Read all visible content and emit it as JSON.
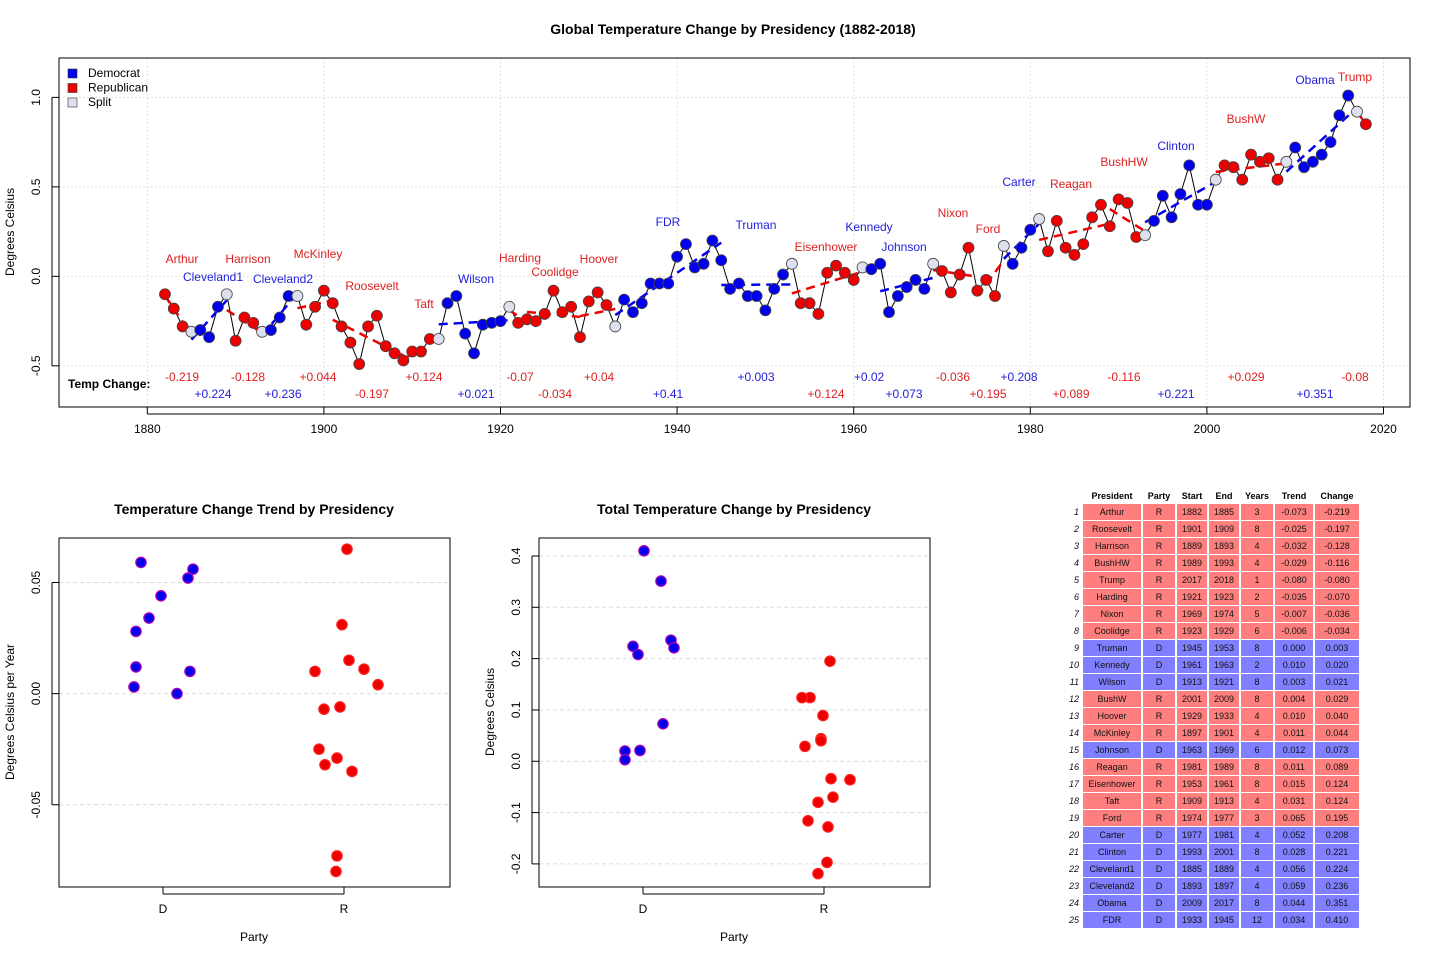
{
  "colors": {
    "democrat": "#0000ee",
    "republican": "#ee0000",
    "split": "#dde0ee",
    "text_d": "#2020dd",
    "text_r": "#dd2020",
    "row_r": "#ff7f7f",
    "row_d": "#7f7fff"
  },
  "main": {
    "title": "Global Temperature Change by Presidency (1882-2018)",
    "ylabel": "Degrees Celsius",
    "xlim": [
      1870,
      2023
    ],
    "ylim": [
      -0.73,
      1.22
    ],
    "xticks": [
      1880,
      1900,
      1920,
      1940,
      1960,
      1980,
      2000,
      2020
    ],
    "yticks": [
      -0.5,
      0.0,
      0.5,
      1.0
    ],
    "ytick_labels": [
      "-0.5",
      "0.0",
      "0.5",
      "1.0"
    ],
    "legend": [
      "Democrat",
      "Republican",
      "Split"
    ],
    "temp_change_label": "Temp Change:"
  },
  "chart_data": [
    {
      "type": "line",
      "title": "Global Temperature Change by Presidency (1882-2018)",
      "xlabel": "",
      "ylabel": "Degrees Celsius",
      "ylim": [
        -0.73,
        1.22
      ],
      "series": [
        {
          "name": "annual",
          "years": [
            1882,
            1883,
            1884,
            1885,
            1886,
            1887,
            1888,
            1889,
            1890,
            1891,
            1892,
            1893,
            1894,
            1895,
            1896,
            1897,
            1898,
            1899,
            1900,
            1901,
            1902,
            1903,
            1904,
            1905,
            1906,
            1907,
            1908,
            1909,
            1910,
            1911,
            1912,
            1913,
            1914,
            1915,
            1916,
            1917,
            1918,
            1919,
            1920,
            1921,
            1922,
            1923,
            1924,
            1925,
            1926,
            1927,
            1928,
            1929,
            1930,
            1931,
            1932,
            1933,
            1934,
            1935,
            1936,
            1937,
            1938,
            1939,
            1940,
            1941,
            1942,
            1943,
            1944,
            1945,
            1946,
            1947,
            1948,
            1949,
            1950,
            1951,
            1952,
            1953,
            1954,
            1955,
            1956,
            1957,
            1958,
            1959,
            1960,
            1961,
            1962,
            1963,
            1964,
            1965,
            1966,
            1967,
            1968,
            1969,
            1970,
            1971,
            1972,
            1973,
            1974,
            1975,
            1976,
            1977,
            1978,
            1979,
            1980,
            1981,
            1982,
            1983,
            1984,
            1985,
            1986,
            1987,
            1988,
            1989,
            1990,
            1991,
            1992,
            1993,
            1994,
            1995,
            1996,
            1997,
            1998,
            1999,
            2000,
            2001,
            2002,
            2003,
            2004,
            2005,
            2006,
            2007,
            2008,
            2009,
            2010,
            2011,
            2012,
            2013,
            2014,
            2015,
            2016,
            2017,
            2018
          ],
          "values": [
            -0.1,
            -0.18,
            -0.28,
            -0.31,
            -0.3,
            -0.34,
            -0.17,
            -0.1,
            -0.36,
            -0.23,
            -0.26,
            -0.31,
            -0.3,
            -0.23,
            -0.11,
            -0.11,
            -0.27,
            -0.17,
            -0.08,
            -0.15,
            -0.28,
            -0.37,
            -0.49,
            -0.28,
            -0.22,
            -0.39,
            -0.43,
            -0.47,
            -0.42,
            -0.42,
            -0.35,
            -0.35,
            -0.15,
            -0.11,
            -0.32,
            -0.43,
            -0.27,
            -0.26,
            -0.25,
            -0.17,
            -0.26,
            -0.24,
            -0.25,
            -0.21,
            -0.08,
            -0.2,
            -0.17,
            -0.34,
            -0.14,
            -0.09,
            -0.16,
            -0.28,
            -0.13,
            -0.2,
            -0.15,
            -0.04,
            -0.04,
            -0.04,
            0.11,
            0.18,
            0.05,
            0.07,
            0.2,
            0.09,
            -0.07,
            -0.04,
            -0.11,
            -0.11,
            -0.19,
            -0.07,
            0.01,
            0.07,
            -0.15,
            -0.15,
            -0.21,
            0.02,
            0.06,
            0.02,
            -0.02,
            0.05,
            0.04,
            0.07,
            -0.2,
            -0.11,
            -0.06,
            -0.02,
            -0.07,
            0.07,
            0.03,
            -0.09,
            0.01,
            0.16,
            -0.08,
            -0.02,
            -0.11,
            0.17,
            0.07,
            0.16,
            0.26,
            0.32,
            0.14,
            0.31,
            0.16,
            0.12,
            0.18,
            0.33,
            0.4,
            0.28,
            0.43,
            0.41,
            0.22,
            0.23,
            0.31,
            0.45,
            0.33,
            0.46,
            0.62,
            0.4,
            0.4,
            0.54,
            0.62,
            0.61,
            0.54,
            0.68,
            0.64,
            0.66,
            0.54,
            0.64,
            0.72,
            0.61,
            0.64,
            0.68,
            0.75,
            0.9,
            1.01,
            0.92,
            0.85
          ]
        }
      ],
      "presidencies": [
        {
          "name": "Arthur",
          "party": "R",
          "start": 1882,
          "end": 1885,
          "change": "-0.219"
        },
        {
          "name": "Cleveland1",
          "party": "D",
          "start": 1885,
          "end": 1889,
          "change": "+0.224"
        },
        {
          "name": "Harrison",
          "party": "R",
          "start": 1889,
          "end": 1893,
          "change": "-0.128"
        },
        {
          "name": "Cleveland2",
          "party": "D",
          "start": 1893,
          "end": 1897,
          "change": "+0.236"
        },
        {
          "name": "McKinley",
          "party": "R",
          "start": 1897,
          "end": 1901,
          "change": "+0.044"
        },
        {
          "name": "Roosevelt",
          "party": "R",
          "start": 1901,
          "end": 1909,
          "change": "-0.197"
        },
        {
          "name": "Taft",
          "party": "R",
          "start": 1909,
          "end": 1913,
          "change": "+0.124"
        },
        {
          "name": "Wilson",
          "party": "D",
          "start": 1913,
          "end": 1921,
          "change": "+0.021"
        },
        {
          "name": "Harding",
          "party": "R",
          "start": 1921,
          "end": 1923,
          "change": "-0.07"
        },
        {
          "name": "Coolidge",
          "party": "R",
          "start": 1923,
          "end": 1929,
          "change": "-0.034"
        },
        {
          "name": "Hoover",
          "party": "R",
          "start": 1929,
          "end": 1933,
          "change": "+0.04"
        },
        {
          "name": "FDR",
          "party": "D",
          "start": 1933,
          "end": 1945,
          "change": "+0.41"
        },
        {
          "name": "Truman",
          "party": "D",
          "start": 1945,
          "end": 1953,
          "change": "+0.003"
        },
        {
          "name": "Eisenhower",
          "party": "R",
          "start": 1953,
          "end": 1961,
          "change": "+0.124"
        },
        {
          "name": "Kennedy",
          "party": "D",
          "start": 1961,
          "end": 1963,
          "change": "+0.02"
        },
        {
          "name": "Johnson",
          "party": "D",
          "start": 1963,
          "end": 1969,
          "change": "+0.073"
        },
        {
          "name": "Nixon",
          "party": "R",
          "start": 1969,
          "end": 1974,
          "change": "-0.036"
        },
        {
          "name": "Ford",
          "party": "R",
          "start": 1974,
          "end": 1977,
          "change": "+0.195"
        },
        {
          "name": "Carter",
          "party": "D",
          "start": 1977,
          "end": 1981,
          "change": "+0.208"
        },
        {
          "name": "Reagan",
          "party": "R",
          "start": 1981,
          "end": 1989,
          "change": "+0.089"
        },
        {
          "name": "BushHW",
          "party": "R",
          "start": 1989,
          "end": 1993,
          "change": "-0.116"
        },
        {
          "name": "Clinton",
          "party": "D",
          "start": 1993,
          "end": 2001,
          "change": "+0.221"
        },
        {
          "name": "BushW",
          "party": "R",
          "start": 2001,
          "end": 2009,
          "change": "+0.029"
        },
        {
          "name": "Obama",
          "party": "D",
          "start": 2009,
          "end": 2017,
          "change": "+0.351"
        },
        {
          "name": "Trump",
          "party": "R",
          "start": 2017,
          "end": 2018,
          "change": "-0.08"
        }
      ]
    },
    {
      "type": "scatter",
      "title": "Temperature Change Trend by Presidency",
      "xlabel": "Party",
      "ylabel": "Degrees Celsius per Year",
      "categories": [
        "D",
        "R"
      ],
      "ylim": [
        -0.087,
        0.07
      ],
      "yticks": [
        -0.05,
        0.0,
        0.05
      ],
      "ytick_labels": [
        "-0.05",
        "0.00",
        "0.05"
      ],
      "series": [
        {
          "name": "D",
          "values": [
            0.059,
            0.044,
            0.034,
            0.028,
            0.012,
            0.003,
            0.0,
            0.052,
            0.056,
            0.01
          ]
        },
        {
          "name": "R",
          "values": [
            0.065,
            0.031,
            0.015,
            0.011,
            0.004,
            0.01,
            -0.006,
            -0.007,
            -0.025,
            -0.029,
            -0.032,
            -0.035,
            -0.073,
            -0.08
          ]
        }
      ]
    },
    {
      "type": "scatter",
      "title": "Total Temperature Change by Presidency",
      "xlabel": "Party",
      "ylabel": "Degrees Celsius",
      "categories": [
        "D",
        "R"
      ],
      "ylim": [
        -0.245,
        0.435
      ],
      "yticks": [
        -0.2,
        -0.1,
        0.0,
        0.1,
        0.2,
        0.3,
        0.4
      ],
      "ytick_labels": [
        "-0.2",
        "-0.1",
        "0.0",
        "0.1",
        "0.2",
        "0.3",
        "0.4"
      ],
      "series": [
        {
          "name": "D",
          "values": [
            0.41,
            0.351,
            0.236,
            0.224,
            0.221,
            0.208,
            0.073,
            0.021,
            0.02,
            0.003
          ]
        },
        {
          "name": "R",
          "values": [
            0.195,
            0.124,
            0.124,
            0.089,
            0.044,
            0.04,
            0.029,
            -0.034,
            -0.036,
            -0.07,
            -0.08,
            -0.116,
            -0.128,
            -0.197,
            -0.219
          ]
        }
      ]
    }
  ],
  "trend_title": "Temperature Change Trend by Presidency",
  "trend_xlabel": "Party",
  "trend_ylabel": "Degrees Celsius per Year",
  "total_title": "Total Temperature Change by Presidency",
  "total_xlabel": "Party",
  "total_ylabel": "Degrees Celsius",
  "table": {
    "headers": [
      "President",
      "Party",
      "Start",
      "End",
      "Years",
      "Trend",
      "Change"
    ],
    "rows": [
      [
        "1",
        "Arthur",
        "R",
        "1882",
        "1885",
        "3",
        "-0.073",
        "-0.219"
      ],
      [
        "2",
        "Roosevelt",
        "R",
        "1901",
        "1909",
        "8",
        "-0.025",
        "-0.197"
      ],
      [
        "3",
        "Harrison",
        "R",
        "1889",
        "1893",
        "4",
        "-0.032",
        "-0.128"
      ],
      [
        "4",
        "BushHW",
        "R",
        "1989",
        "1993",
        "4",
        "-0.029",
        "-0.116"
      ],
      [
        "5",
        "Trump",
        "R",
        "2017",
        "2018",
        "1",
        "-0.080",
        "-0.080"
      ],
      [
        "6",
        "Harding",
        "R",
        "1921",
        "1923",
        "2",
        "-0.035",
        "-0.070"
      ],
      [
        "7",
        "Nixon",
        "R",
        "1969",
        "1974",
        "5",
        "-0.007",
        "-0.036"
      ],
      [
        "8",
        "Coolidge",
        "R",
        "1923",
        "1929",
        "6",
        "-0.006",
        "-0.034"
      ],
      [
        "9",
        "Truman",
        "D",
        "1945",
        "1953",
        "8",
        "0.000",
        "0.003"
      ],
      [
        "10",
        "Kennedy",
        "D",
        "1961",
        "1963",
        "2",
        "0.010",
        "0.020"
      ],
      [
        "11",
        "Wilson",
        "D",
        "1913",
        "1921",
        "8",
        "0.003",
        "0.021"
      ],
      [
        "12",
        "BushW",
        "R",
        "2001",
        "2009",
        "8",
        "0.004",
        "0.029"
      ],
      [
        "13",
        "Hoover",
        "R",
        "1929",
        "1933",
        "4",
        "0.010",
        "0.040"
      ],
      [
        "14",
        "McKinley",
        "R",
        "1897",
        "1901",
        "4",
        "0.011",
        "0.044"
      ],
      [
        "15",
        "Johnson",
        "D",
        "1963",
        "1969",
        "6",
        "0.012",
        "0.073"
      ],
      [
        "16",
        "Reagan",
        "R",
        "1981",
        "1989",
        "8",
        "0.011",
        "0.089"
      ],
      [
        "17",
        "Eisenhower",
        "R",
        "1953",
        "1961",
        "8",
        "0.015",
        "0.124"
      ],
      [
        "18",
        "Taft",
        "R",
        "1909",
        "1913",
        "4",
        "0.031",
        "0.124"
      ],
      [
        "19",
        "Ford",
        "R",
        "1974",
        "1977",
        "3",
        "0.065",
        "0.195"
      ],
      [
        "20",
        "Carter",
        "D",
        "1977",
        "1981",
        "4",
        "0.052",
        "0.208"
      ],
      [
        "21",
        "Clinton",
        "D",
        "1993",
        "2001",
        "8",
        "0.028",
        "0.221"
      ],
      [
        "22",
        "Cleveland1",
        "D",
        "1885",
        "1889",
        "4",
        "0.056",
        "0.224"
      ],
      [
        "23",
        "Cleveland2",
        "D",
        "1893",
        "1897",
        "4",
        "0.059",
        "0.236"
      ],
      [
        "24",
        "Obama",
        "D",
        "2009",
        "2017",
        "8",
        "0.044",
        "0.351"
      ],
      [
        "25",
        "FDR",
        "D",
        "1933",
        "1945",
        "12",
        "0.034",
        "0.410"
      ]
    ]
  }
}
